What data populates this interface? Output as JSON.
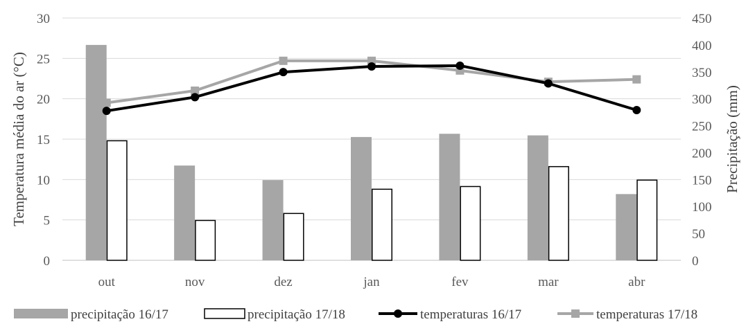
{
  "chart_data": {
    "type": "bar",
    "title": "",
    "categories": [
      "out",
      "nov",
      "dez",
      "jan",
      "fev",
      "mar",
      "abr"
    ],
    "ylabel_left": "Temperatura média do ar (°C)",
    "ylabel_right": "Precipitação (mm)",
    "ylim_left": [
      0,
      30
    ],
    "ylim_right": [
      0,
      450
    ],
    "yticks_left": [
      0,
      5,
      10,
      15,
      20,
      25,
      30
    ],
    "yticks_right": [
      0,
      50,
      100,
      150,
      200,
      250,
      300,
      350,
      400,
      450
    ],
    "grid": true,
    "legend_position": "bottom",
    "colors": {
      "precip_1617": "#a6a6a6",
      "precip_1718": "#ffffff",
      "temp_1617": "#000000",
      "temp_1718": "#a6a6a6"
    },
    "series": [
      {
        "name": "precipitação 16/17",
        "type": "bar",
        "axis": "right",
        "values": [
          400,
          176,
          149,
          229,
          235,
          232,
          123
        ]
      },
      {
        "name": "precipitação 17/18",
        "type": "bar",
        "axis": "right",
        "values": [
          222,
          74,
          87,
          132,
          137,
          174,
          149
        ]
      },
      {
        "name": "temperaturas 16/17",
        "type": "line",
        "axis": "left",
        "values": [
          18.5,
          20.2,
          23.3,
          24.0,
          24.1,
          21.9,
          18.6
        ]
      },
      {
        "name": "temperaturas 17/18",
        "type": "line",
        "axis": "left",
        "values": [
          19.5,
          21.0,
          24.7,
          24.7,
          23.5,
          22.1,
          22.4
        ]
      }
    ]
  }
}
